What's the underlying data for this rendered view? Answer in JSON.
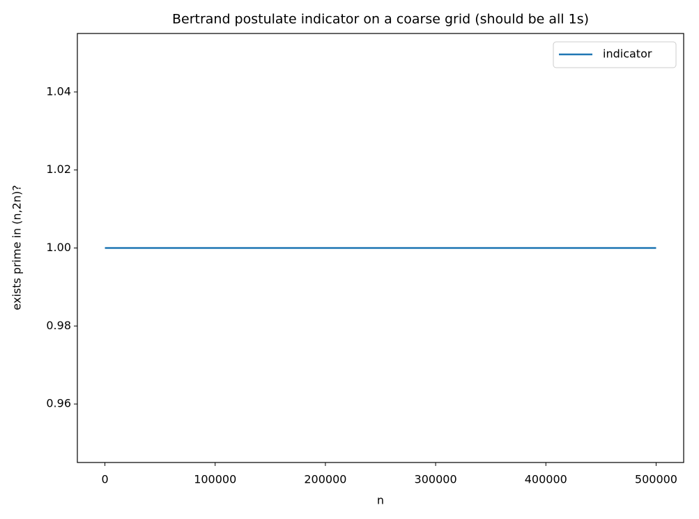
{
  "chart_data": {
    "type": "line",
    "title": "Bertrand postulate indicator on a coarse grid (should be all 1s)",
    "x_label": "n",
    "y_label": "exists prime in (n,2n)?",
    "x": [
      0,
      500000
    ],
    "series": [
      {
        "name": "indicator",
        "color": "#1f77b4",
        "values": [
          1,
          1
        ]
      }
    ],
    "xlim": [
      -25000,
      525000
    ],
    "xticks": [
      0,
      100000,
      200000,
      300000,
      400000,
      500000
    ],
    "ylim": [
      0.945,
      1.055
    ],
    "yticks": [
      0.96,
      0.98,
      {
        "value": 1,
        "label": "1.00"
      },
      1.02,
      1.04
    ],
    "grid": false,
    "legend": "upper right"
  }
}
